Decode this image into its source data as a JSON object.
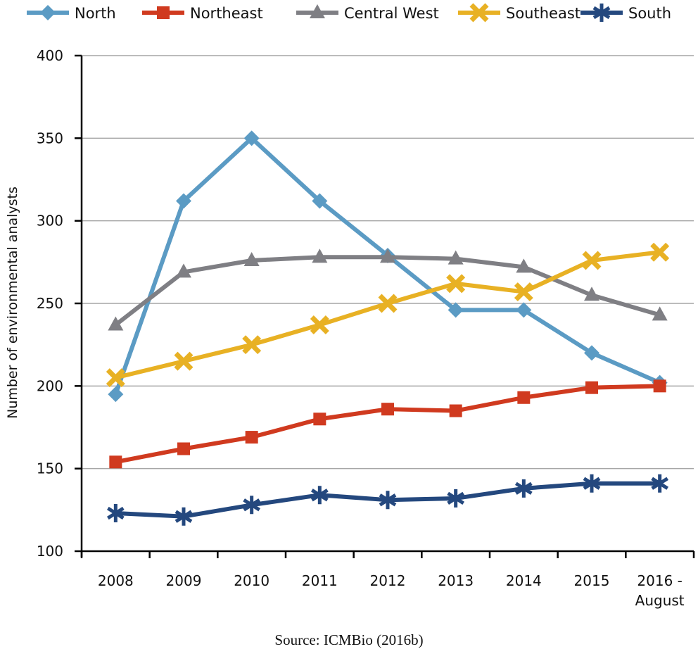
{
  "chart_data": {
    "type": "line",
    "title": "",
    "xlabel": "",
    "ylabel": "Number of environmental analysts",
    "ylim": [
      100,
      400
    ],
    "yticks": [
      100,
      150,
      200,
      250,
      300,
      350,
      400
    ],
    "grid": "horizontal",
    "legend_position": "top",
    "categories": [
      "2008",
      "2009",
      "2010",
      "2011",
      "2012",
      "2013",
      "2014",
      "2015",
      "2016 - August"
    ],
    "series": [
      {
        "name": "North",
        "color": "#5b9bc4",
        "marker": "diamond",
        "values": [
          195,
          312,
          350,
          312,
          279,
          246,
          246,
          220,
          202
        ]
      },
      {
        "name": "Northeast",
        "color": "#d03a1f",
        "marker": "square",
        "values": [
          154,
          162,
          169,
          180,
          186,
          185,
          193,
          199,
          200
        ]
      },
      {
        "name": "Central West",
        "color": "#7f7f84",
        "marker": "triangle",
        "values": [
          237,
          269,
          276,
          278,
          278,
          277,
          272,
          255,
          243
        ]
      },
      {
        "name": "Southeast",
        "color": "#e8b124",
        "marker": "x",
        "values": [
          205,
          215,
          225,
          237,
          250,
          262,
          257,
          276,
          281
        ]
      },
      {
        "name": "South",
        "color": "#24487e",
        "marker": "asterisk",
        "values": [
          123,
          121,
          128,
          134,
          131,
          132,
          138,
          141,
          141
        ]
      }
    ],
    "source": "Source: ICMBio (2016b)"
  }
}
